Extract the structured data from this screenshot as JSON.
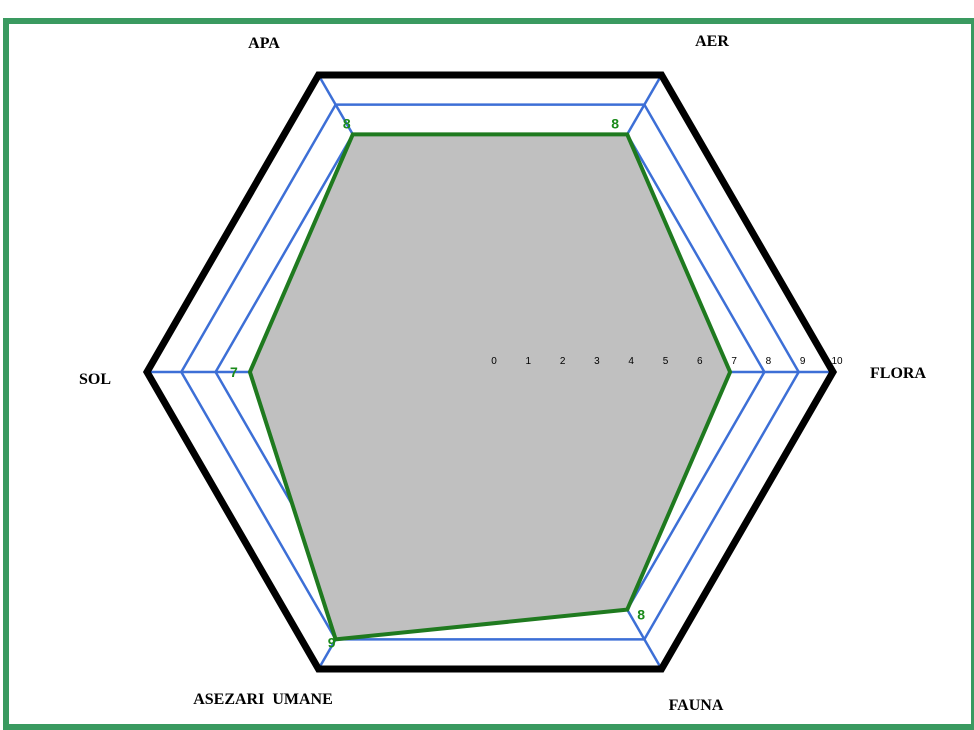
{
  "chart_data": {
    "type": "radar",
    "axes": [
      "FLORA",
      "AER",
      "APA",
      "SOL",
      "ASEZARI  UMANE",
      "FAUNA"
    ],
    "ticks": [
      "0",
      "1",
      "2",
      "3",
      "4",
      "5",
      "6",
      "7",
      "8",
      "9",
      "10"
    ],
    "range": [
      0,
      10
    ],
    "series": [
      {
        "values": [
          7,
          8,
          8,
          7,
          9,
          8
        ]
      }
    ],
    "value_labels": [
      "",
      "8",
      "8",
      "7",
      "9",
      "8"
    ],
    "colors": {
      "series_line": "#1f7a1f",
      "series_fill": "#c0c0c0",
      "grid": "#3d6fd6",
      "outer": "#000000",
      "value_text": "#1a8a1a",
      "frame": "#3a9a60"
    }
  }
}
